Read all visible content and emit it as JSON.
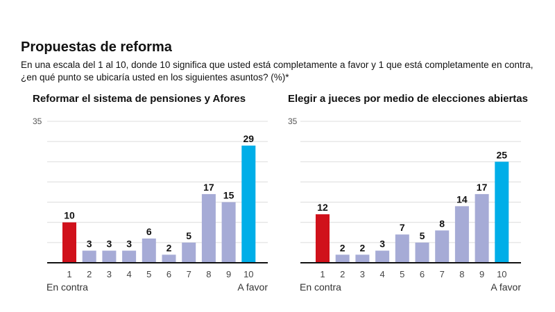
{
  "header": {
    "title": "Propuestas de reforma",
    "subtitle": "En una escala del 1 al 10, donde 10 significa que usted está completamente a favor y 1 que está completamente en contra, ¿en qué punto se ubicaría usted en los siguientes asuntos? (%)*"
  },
  "colors": {
    "against": "#d0111b",
    "middle": "#a6abd6",
    "favor": "#00aee8"
  },
  "chart_data": [
    {
      "type": "bar",
      "title": "Reformar el sistema de pensiones y Afores",
      "categories": [
        "1",
        "2",
        "3",
        "4",
        "5",
        "6",
        "7",
        "8",
        "9",
        "10"
      ],
      "values": [
        10,
        3,
        3,
        3,
        6,
        2,
        5,
        17,
        15,
        29
      ],
      "ylim": [
        0,
        35
      ],
      "ytick_label": "35",
      "grid_step": 5,
      "xlabel_left": "En contra",
      "xlabel_right": "A favor"
    },
    {
      "type": "bar",
      "title": "Elegir a jueces por medio de elecciones abiertas",
      "categories": [
        "1",
        "2",
        "3",
        "4",
        "5",
        "6",
        "7",
        "8",
        "9",
        "10"
      ],
      "values": [
        12,
        2,
        2,
        3,
        7,
        5,
        8,
        14,
        17,
        25
      ],
      "ylim": [
        0,
        35
      ],
      "ytick_label": "35",
      "grid_step": 5,
      "xlabel_left": "En contra",
      "xlabel_right": "A favor"
    }
  ]
}
